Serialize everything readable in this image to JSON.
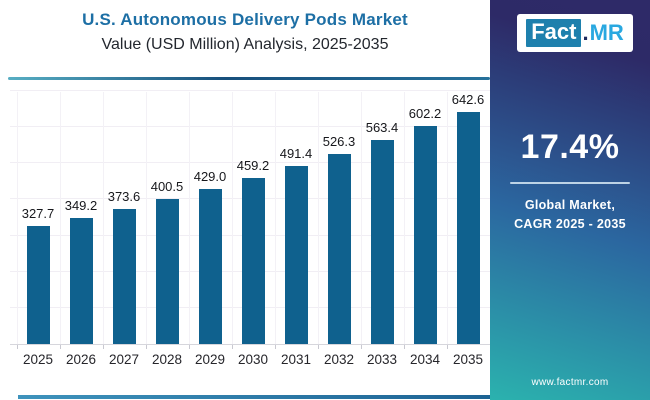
{
  "header": {
    "title": "U.S. Autonomous Delivery Pods Market",
    "subtitle": "Value (USD Million) Analysis, 2025-2035"
  },
  "logo": {
    "part_fact": "Fact",
    "part_dot": ".",
    "part_mr": "MR"
  },
  "sidebar": {
    "cagr_value": "17.4%",
    "cagr_label_line1": "Global Market,",
    "cagr_label_line2": "CAGR 2025 - 2035",
    "website": "www.factmr.com"
  },
  "chart_data": {
    "type": "bar",
    "title": "U.S. Autonomous Delivery Pods Market Value (USD Million) Analysis, 2025-2035",
    "categories": [
      "2025",
      "2026",
      "2027",
      "2028",
      "2029",
      "2030",
      "2031",
      "2032",
      "2033",
      "2034",
      "2035"
    ],
    "values": [
      327.7,
      349.2,
      373.6,
      400.5,
      429.0,
      459.2,
      491.4,
      526.3,
      563.4,
      602.2,
      642.6
    ],
    "value_labels": [
      "327.7",
      "349.2",
      "373.6",
      "400.5",
      "429.0",
      "459.2",
      "491.4",
      "526.3",
      "563.4",
      "602.2",
      "642.6"
    ],
    "xlabel": "",
    "ylabel": "",
    "ylim": [
      0,
      700
    ],
    "y_gridlines": [
      100,
      200,
      300,
      400,
      500,
      600,
      700
    ],
    "grid": "on",
    "legend": "none",
    "bar_color": "#0f618e"
  },
  "colors": {
    "title_blue": "#1d6fa5",
    "bar_blue": "#0f618e",
    "sidebar_top": "#2d2a67",
    "sidebar_mid": "#2b67a0",
    "sidebar_bottom": "#2bb2ae",
    "logo_fact_bg": "#1e80ad",
    "logo_mr_text": "#29a8e0",
    "divider_blue": "#174f7c"
  }
}
